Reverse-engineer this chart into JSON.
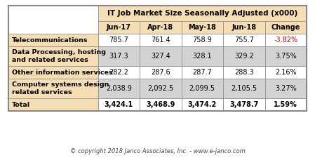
{
  "title": "IT Job Market Size Seasonally Adjusted (x000)",
  "col_headers": [
    "Jun-17",
    "Apr-18",
    "May-18",
    "Jun-18",
    "Change"
  ],
  "row_labels": [
    "Telecommunications",
    "Data Processing, hosting\nand related services",
    "Other information services",
    "Computer systems design\nrelated services",
    "Total"
  ],
  "data_str": [
    [
      "785.7",
      "761.4",
      "758.9",
      "755.7",
      "-3.82%"
    ],
    [
      "317.3",
      "327.4",
      "328.1",
      "329.2",
      "3.75%"
    ],
    [
      "282.2",
      "287.6",
      "287.7",
      "288.3",
      "2.16%"
    ],
    [
      "2,038.9",
      "2,092.5",
      "2,099.5",
      "2,105.5",
      "3.27%"
    ],
    [
      "3,424.1",
      "3,468.9",
      "3,474.2",
      "3,478.7",
      "1.59%"
    ]
  ],
  "header_bg": "#F5DEB3",
  "row_label_bg": "#F5DEB3",
  "alt_row_bg": "#D3D3D3",
  "white_row_bg": "#FFFFFF",
  "negative_color": "#CC0000",
  "positive_color": "#000000",
  "border_color": "#999999",
  "outer_border_color": "#888888",
  "copyright": "© copyright 2018 Janco Associates, Inc. - www.e-janco.com",
  "outer_bg": "#FFFFFF",
  "fig_bg": "#FFFFFF"
}
